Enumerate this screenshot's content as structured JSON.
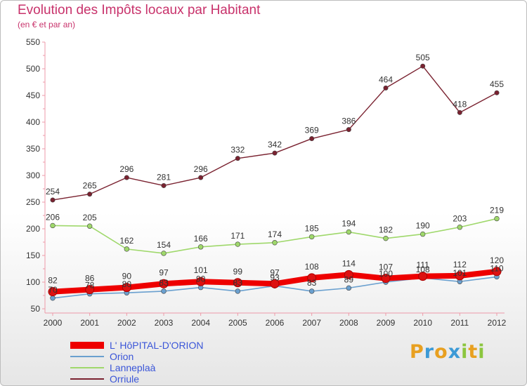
{
  "header": {
    "title": "Evolution des Impôts locaux par Habitant",
    "subtitle": "(en € et par an)"
  },
  "brand": {
    "letters": [
      "P",
      "r",
      "o",
      "x",
      "i",
      "t",
      "i"
    ],
    "colors": [
      "#e8a020",
      "#3c9ad6",
      "#e8a020",
      "#3c9ad6",
      "#8cc63f",
      "#e8a020",
      "#8cc63f"
    ]
  },
  "chart_data": {
    "type": "line",
    "x": [
      2000,
      2001,
      2002,
      2003,
      2004,
      2005,
      2006,
      2007,
      2008,
      2009,
      2010,
      2011,
      2012
    ],
    "ylim": [
      50,
      550
    ],
    "yticks": [
      50,
      100,
      150,
      200,
      250,
      300,
      350,
      400,
      450,
      500,
      550
    ],
    "grid": false,
    "legend_position": "bottom-left",
    "series": [
      {
        "name": "L' HôPITAL-D'ORION",
        "color": "#ee0000",
        "values": [
          82,
          86,
          90,
          97,
          101,
          99,
          97,
          108,
          114,
          107,
          111,
          112,
          120
        ]
      },
      {
        "name": "Orion",
        "color": "#6aa0cf",
        "values": [
          70,
          78,
          80,
          83,
          90,
          83,
          93,
          83,
          89,
          100,
          108,
          101,
          110
        ]
      },
      {
        "name": "Lanneplaà",
        "color": "#9fd86b",
        "values": [
          206,
          205,
          162,
          154,
          166,
          171,
          174,
          185,
          194,
          182,
          190,
          203,
          219
        ]
      },
      {
        "name": "Orriule",
        "color": "#7a2230",
        "values": [
          254,
          265,
          296,
          281,
          296,
          332,
          342,
          369,
          386,
          464,
          505,
          418,
          455
        ]
      }
    ]
  }
}
